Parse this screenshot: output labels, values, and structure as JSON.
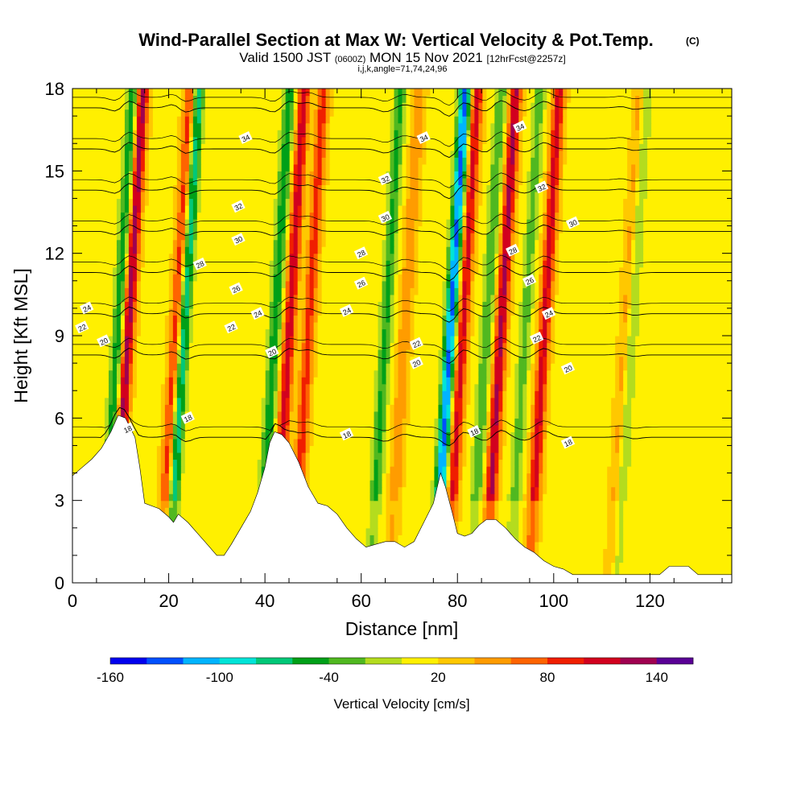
{
  "chart_data": {
    "type": "heatmap",
    "title": "Wind-Parallel Section at Max W: Vertical Velocity & Pot.Temp.",
    "title_mark": "(C)",
    "subtitle_main_1": "Valid 1500 JST ",
    "subtitle_small": "(0600Z)",
    "subtitle_main_2": " MON 15 Nov 2021 ",
    "subtitle_fcst": "[12hrFcst@2257z]",
    "subtitle_indices": "i,j,k,angle=71,74,24,96",
    "xlabel": "Distance [nm]",
    "ylabel": "Height [Kft MSL]",
    "xlim": [
      0,
      137
    ],
    "ylim": [
      0,
      18
    ],
    "x_ticks": [
      0,
      20,
      40,
      60,
      80,
      100,
      120
    ],
    "x_tick_labels": [
      "0",
      "20",
      "40",
      "60",
      "80",
      "100",
      "120"
    ],
    "y_ticks": [
      0,
      3,
      6,
      9,
      12,
      15,
      18
    ],
    "y_tick_labels": [
      "0",
      "3",
      "6",
      "9",
      "12",
      "15",
      "18"
    ],
    "colorbar": {
      "label": "Vertical Velocity [cm/s]",
      "range": [
        -160,
        160
      ],
      "tick_values": [
        -160,
        -100,
        -40,
        20,
        80,
        140
      ],
      "tick_labels": [
        "-160",
        "-100",
        "-40",
        "20",
        "80",
        "140"
      ],
      "colors": [
        "#0000ee",
        "#0050ff",
        "#00b4ff",
        "#00e4d8",
        "#00c878",
        "#00a018",
        "#50b820",
        "#b4dc1e",
        "#fff000",
        "#ffc800",
        "#ff9c00",
        "#ff6400",
        "#f01e00",
        "#d2001e",
        "#a00050",
        "#5a0096"
      ]
    },
    "background_w_cm_s": 15,
    "updrafts": [
      {
        "x": 11.5,
        "w": 120
      },
      {
        "x": 21.5,
        "w": 85
      },
      {
        "x": 45,
        "w": 100
      },
      {
        "x": 49,
        "w": 75
      },
      {
        "x": 69,
        "w": 45
      },
      {
        "x": 81,
        "w": 95
      },
      {
        "x": 89,
        "w": 110
      },
      {
        "x": 98,
        "w": 95
      },
      {
        "x": 115,
        "w": 45
      }
    ],
    "downdrafts": [
      {
        "x": 9.5,
        "w": -75
      },
      {
        "x": 23,
        "w": -100
      },
      {
        "x": 42,
        "w": -70
      },
      {
        "x": 65,
        "w": -60
      },
      {
        "x": 78.5,
        "w": -140
      },
      {
        "x": 86,
        "w": -55
      },
      {
        "x": 94,
        "w": -45
      },
      {
        "x": 116,
        "w": -50
      }
    ],
    "isentropes": {
      "variable": "Potential Temperature",
      "levels": [
        18,
        20,
        22,
        24,
        26,
        28,
        30,
        32,
        34
      ],
      "labels": [
        {
          "text": "18",
          "x": 11.5,
          "y": 5.6
        },
        {
          "text": "18",
          "x": 24,
          "y": 6.0
        },
        {
          "text": "18",
          "x": 57,
          "y": 5.4
        },
        {
          "text": "18",
          "x": 83.5,
          "y": 5.5
        },
        {
          "text": "18",
          "x": 103,
          "y": 5.1
        },
        {
          "text": "20",
          "x": 6.5,
          "y": 8.8
        },
        {
          "text": "20",
          "x": 41.5,
          "y": 8.4
        },
        {
          "text": "20",
          "x": 71.5,
          "y": 8.0
        },
        {
          "text": "20",
          "x": 103,
          "y": 7.8
        },
        {
          "text": "22",
          "x": 2,
          "y": 9.3
        },
        {
          "text": "22",
          "x": 33,
          "y": 9.3
        },
        {
          "text": "22",
          "x": 71.5,
          "y": 8.7
        },
        {
          "text": "22",
          "x": 96.5,
          "y": 8.9
        },
        {
          "text": "24",
          "x": 3,
          "y": 10.0
        },
        {
          "text": "24",
          "x": 38.5,
          "y": 9.8
        },
        {
          "text": "24",
          "x": 57,
          "y": 9.9
        },
        {
          "text": "24",
          "x": 99,
          "y": 9.8
        },
        {
          "text": "26",
          "x": 34,
          "y": 10.7
        },
        {
          "text": "26",
          "x": 60,
          "y": 10.9
        },
        {
          "text": "26",
          "x": 95,
          "y": 11.0
        },
        {
          "text": "28",
          "x": 26.5,
          "y": 11.6
        },
        {
          "text": "28",
          "x": 60,
          "y": 12.0
        },
        {
          "text": "28",
          "x": 91.5,
          "y": 12.1
        },
        {
          "text": "30",
          "x": 34.5,
          "y": 12.5
        },
        {
          "text": "30",
          "x": 65,
          "y": 13.3
        },
        {
          "text": "30",
          "x": 104,
          "y": 13.1
        },
        {
          "text": "32",
          "x": 34.5,
          "y": 13.7
        },
        {
          "text": "32",
          "x": 65,
          "y": 14.7
        },
        {
          "text": "32",
          "x": 97.5,
          "y": 14.4
        },
        {
          "text": "34",
          "x": 36,
          "y": 16.2
        },
        {
          "text": "34",
          "x": 73,
          "y": 16.2
        },
        {
          "text": "34",
          "x": 93,
          "y": 16.6
        }
      ]
    },
    "terrain_kft": [
      [
        0,
        3.9
      ],
      [
        2,
        4.2
      ],
      [
        4,
        4.5
      ],
      [
        6,
        4.9
      ],
      [
        8,
        5.5
      ],
      [
        9.5,
        6.1
      ],
      [
        11,
        6.0
      ],
      [
        13,
        5.3
      ],
      [
        14,
        4.2
      ],
      [
        15,
        2.9
      ],
      [
        18,
        2.7
      ],
      [
        20,
        2.4
      ],
      [
        21,
        2.2
      ],
      [
        22,
        2.5
      ],
      [
        24,
        2.2
      ],
      [
        26,
        1.8
      ],
      [
        28,
        1.4
      ],
      [
        30,
        1.0
      ],
      [
        31.5,
        1.0
      ],
      [
        33,
        1.4
      ],
      [
        35,
        2.0
      ],
      [
        37,
        2.6
      ],
      [
        38.5,
        3.3
      ],
      [
        40,
        4.2
      ],
      [
        41,
        5.1
      ],
      [
        42,
        5.5
      ],
      [
        43.5,
        5.4
      ],
      [
        45,
        5.1
      ],
      [
        47,
        4.4
      ],
      [
        49,
        3.5
      ],
      [
        51,
        2.9
      ],
      [
        53,
        2.8
      ],
      [
        55,
        2.5
      ],
      [
        57,
        2.0
      ],
      [
        59,
        1.6
      ],
      [
        61,
        1.3
      ],
      [
        63,
        1.4
      ],
      [
        65,
        1.5
      ],
      [
        67,
        1.5
      ],
      [
        69,
        1.3
      ],
      [
        71,
        1.5
      ],
      [
        73,
        2.2
      ],
      [
        75,
        2.9
      ],
      [
        76.5,
        4.0
      ],
      [
        77.5,
        3.5
      ],
      [
        79,
        2.5
      ],
      [
        80,
        1.8
      ],
      [
        81.5,
        1.7
      ],
      [
        83,
        1.8
      ],
      [
        84.5,
        2.1
      ],
      [
        86,
        2.3
      ],
      [
        88,
        2.3
      ],
      [
        90,
        2.0
      ],
      [
        92,
        1.6
      ],
      [
        94,
        1.3
      ],
      [
        96,
        1.1
      ],
      [
        98,
        0.8
      ],
      [
        100,
        0.6
      ],
      [
        102,
        0.5
      ],
      [
        104,
        0.3
      ],
      [
        110,
        0.3
      ],
      [
        116,
        0.3
      ],
      [
        122,
        0.3
      ],
      [
        124,
        0.6
      ],
      [
        128,
        0.6
      ],
      [
        130,
        0.3
      ],
      [
        137,
        0.3
      ]
    ]
  }
}
